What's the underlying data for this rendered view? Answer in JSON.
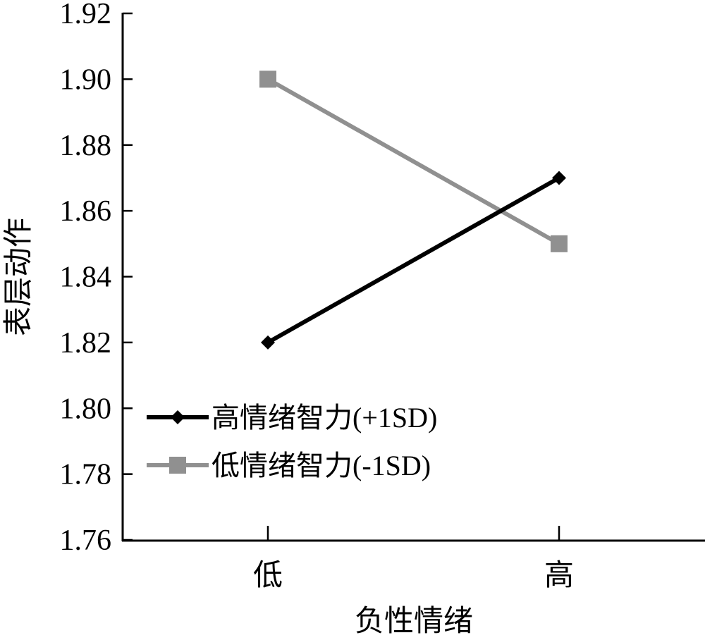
{
  "chart_data": {
    "type": "line",
    "xlabel": "负性情绪",
    "ylabel": "表层动作",
    "categories": [
      "低",
      "高"
    ],
    "ylim": [
      1.76,
      1.92
    ],
    "yticks": [
      "1.76",
      "1.78",
      "1.80",
      "1.82",
      "1.84",
      "1.86",
      "1.88",
      "1.90",
      "1.92"
    ],
    "grid": false,
    "legend_position": "bottom-left",
    "series": [
      {
        "name": "高情绪智力(+1SD)",
        "values": [
          1.82,
          1.87
        ],
        "color": "#000000",
        "marker": "diamond"
      },
      {
        "name": "低情绪智力(-1SD)",
        "values": [
          1.9,
          1.85
        ],
        "color": "#909090",
        "marker": "square"
      }
    ]
  }
}
